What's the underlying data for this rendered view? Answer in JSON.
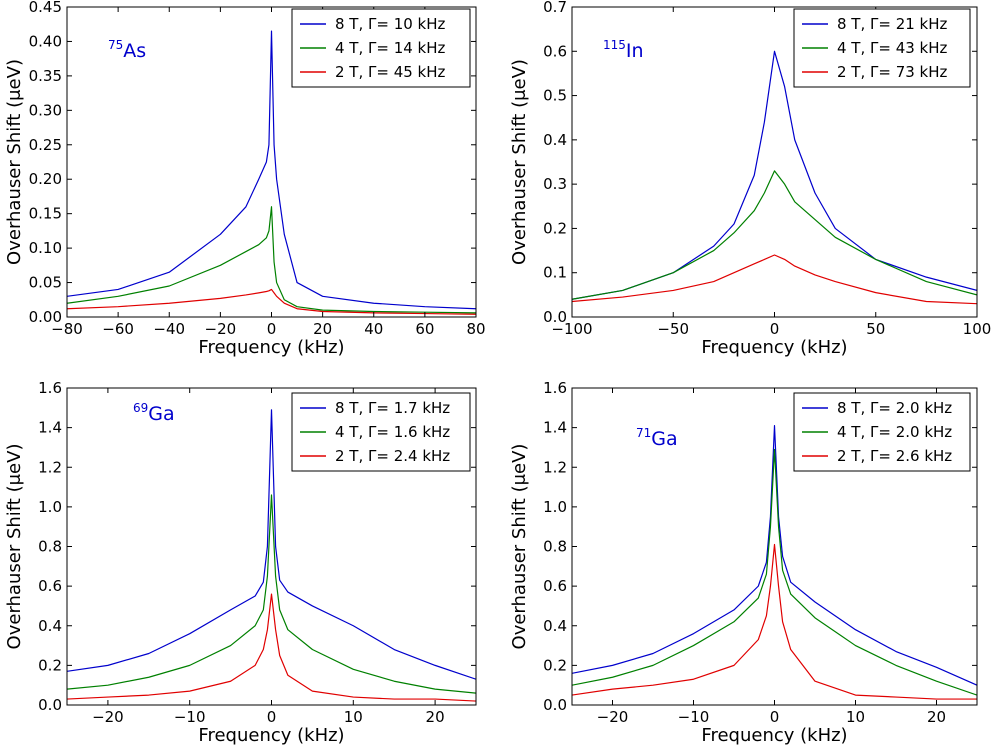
{
  "chart_data": [
    {
      "type": "line",
      "id": "as75",
      "nucleus": {
        "mass": "75",
        "symbol": "As"
      },
      "xlabel": "Frequency (kHz)",
      "ylabel": "Overhauser Shift (μeV)",
      "xlim": [
        -80,
        80
      ],
      "ylim": [
        0,
        0.45
      ],
      "xticks": [
        -80,
        -60,
        -40,
        -20,
        0,
        20,
        40,
        60,
        80
      ],
      "xtick_labels": [
        "−80",
        "−60",
        "−40",
        "−20",
        "0",
        "20",
        "40",
        "60",
        "80"
      ],
      "yticks": [
        0.0,
        0.05,
        0.1,
        0.15,
        0.2,
        0.25,
        0.3,
        0.35,
        0.4,
        0.45
      ],
      "ytick_labels": [
        "0.00",
        "0.05",
        "0.10",
        "0.15",
        "0.20",
        "0.25",
        "0.30",
        "0.35",
        "0.40",
        "0.45"
      ],
      "legend_position": "top-right",
      "series": [
        {
          "name": "8 T, Γ= 10 kHz",
          "color": "#0000cc",
          "x": [
            -80,
            -60,
            -40,
            -20,
            -10,
            -5,
            -2,
            -1,
            0,
            1,
            2,
            5,
            10,
            20,
            40,
            60,
            80
          ],
          "y": [
            0.03,
            0.04,
            0.065,
            0.12,
            0.16,
            0.2,
            0.225,
            0.25,
            0.415,
            0.25,
            0.2,
            0.12,
            0.05,
            0.03,
            0.02,
            0.015,
            0.012
          ]
        },
        {
          "name": "4 T, Γ= 14 kHz",
          "color": "#008000",
          "x": [
            -80,
            -60,
            -40,
            -20,
            -10,
            -5,
            -2,
            -1,
            0,
            1,
            2,
            5,
            10,
            20,
            40,
            60,
            80
          ],
          "y": [
            0.02,
            0.03,
            0.045,
            0.075,
            0.095,
            0.105,
            0.115,
            0.125,
            0.16,
            0.08,
            0.05,
            0.025,
            0.015,
            0.01,
            0.008,
            0.007,
            0.006
          ]
        },
        {
          "name": "2 T, Γ= 45 kHz",
          "color": "#e00000",
          "x": [
            -80,
            -60,
            -40,
            -20,
            -10,
            -5,
            -2,
            -1,
            0,
            1,
            2,
            5,
            10,
            20,
            40,
            60,
            80
          ],
          "y": [
            0.012,
            0.015,
            0.02,
            0.027,
            0.032,
            0.035,
            0.037,
            0.038,
            0.04,
            0.035,
            0.03,
            0.02,
            0.012,
            0.008,
            0.006,
            0.005,
            0.004
          ]
        }
      ]
    },
    {
      "type": "line",
      "id": "in115",
      "nucleus": {
        "mass": "115",
        "symbol": "In"
      },
      "xlabel": "Frequency (kHz)",
      "ylabel": "Overhauser Shift (μeV)",
      "xlim": [
        -100,
        100
      ],
      "ylim": [
        0,
        0.7
      ],
      "xticks": [
        -100,
        -50,
        0,
        50,
        100
      ],
      "xtick_labels": [
        "−100",
        "−50",
        "0",
        "50",
        "100"
      ],
      "yticks": [
        0.0,
        0.1,
        0.2,
        0.3,
        0.4,
        0.5,
        0.6,
        0.7
      ],
      "ytick_labels": [
        "0.0",
        "0.1",
        "0.2",
        "0.3",
        "0.4",
        "0.5",
        "0.6",
        "0.7"
      ],
      "legend_position": "top-right",
      "series": [
        {
          "name": "8 T, Γ= 21 kHz",
          "color": "#0000cc",
          "x": [
            -100,
            -75,
            -50,
            -30,
            -20,
            -10,
            -5,
            0,
            5,
            10,
            20,
            30,
            50,
            75,
            100
          ],
          "y": [
            0.04,
            0.06,
            0.1,
            0.16,
            0.21,
            0.32,
            0.44,
            0.6,
            0.52,
            0.4,
            0.28,
            0.2,
            0.13,
            0.09,
            0.06
          ]
        },
        {
          "name": "4 T, Γ= 43 kHz",
          "color": "#008000",
          "x": [
            -100,
            -75,
            -50,
            -30,
            -20,
            -10,
            -5,
            0,
            5,
            10,
            20,
            30,
            50,
            75,
            100
          ],
          "y": [
            0.04,
            0.06,
            0.1,
            0.15,
            0.19,
            0.24,
            0.28,
            0.33,
            0.3,
            0.26,
            0.22,
            0.18,
            0.13,
            0.08,
            0.05
          ]
        },
        {
          "name": "2 T, Γ= 73 kHz",
          "color": "#e00000",
          "x": [
            -100,
            -75,
            -50,
            -30,
            -20,
            -10,
            -5,
            0,
            5,
            10,
            20,
            30,
            50,
            75,
            100
          ],
          "y": [
            0.035,
            0.045,
            0.06,
            0.08,
            0.1,
            0.12,
            0.13,
            0.14,
            0.13,
            0.115,
            0.095,
            0.08,
            0.055,
            0.035,
            0.03
          ]
        }
      ]
    },
    {
      "type": "line",
      "id": "ga69",
      "nucleus": {
        "mass": "69",
        "symbol": "Ga"
      },
      "xlabel": "Frequency (kHz)",
      "ylabel": "Overhauser Shift (μeV)",
      "xlim": [
        -25,
        25
      ],
      "ylim": [
        0,
        1.6
      ],
      "xticks": [
        -20,
        -10,
        0,
        10,
        20
      ],
      "xtick_labels": [
        "−20",
        "−10",
        "0",
        "10",
        "20"
      ],
      "yticks": [
        0.0,
        0.2,
        0.4,
        0.6,
        0.8,
        1.0,
        1.2,
        1.4,
        1.6
      ],
      "ytick_labels": [
        "0.0",
        "0.2",
        "0.4",
        "0.6",
        "0.8",
        "1.0",
        "1.2",
        "1.4",
        "1.6"
      ],
      "legend_position": "top-right",
      "series": [
        {
          "name": "8 T, Γ= 1.7 kHz",
          "color": "#0000cc",
          "x": [
            -25,
            -20,
            -15,
            -10,
            -5,
            -2,
            -1,
            -0.5,
            0,
            0.5,
            1,
            2,
            5,
            10,
            15,
            20,
            25
          ],
          "y": [
            0.17,
            0.2,
            0.26,
            0.36,
            0.48,
            0.55,
            0.62,
            0.8,
            1.49,
            0.8,
            0.63,
            0.57,
            0.5,
            0.4,
            0.28,
            0.2,
            0.13
          ]
        },
        {
          "name": "4 T, Γ= 1.6 kHz",
          "color": "#008000",
          "x": [
            -25,
            -20,
            -15,
            -10,
            -5,
            -2,
            -1,
            -0.5,
            0,
            0.5,
            1,
            2,
            5,
            10,
            15,
            20,
            25
          ],
          "y": [
            0.08,
            0.1,
            0.14,
            0.2,
            0.3,
            0.4,
            0.48,
            0.65,
            1.06,
            0.65,
            0.48,
            0.38,
            0.28,
            0.18,
            0.12,
            0.08,
            0.06
          ]
        },
        {
          "name": "2 T, Γ= 2.4 kHz",
          "color": "#e00000",
          "x": [
            -25,
            -20,
            -15,
            -10,
            -5,
            -2,
            -1,
            -0.5,
            0,
            0.5,
            1,
            2,
            5,
            10,
            15,
            20,
            25
          ],
          "y": [
            0.03,
            0.04,
            0.05,
            0.07,
            0.12,
            0.2,
            0.28,
            0.38,
            0.56,
            0.38,
            0.25,
            0.15,
            0.07,
            0.04,
            0.03,
            0.03,
            0.02
          ]
        }
      ]
    },
    {
      "type": "line",
      "id": "ga71",
      "nucleus": {
        "mass": "71",
        "symbol": "Ga"
      },
      "xlabel": "Frequency (kHz)",
      "ylabel": "Overhauser Shift (μeV)",
      "xlim": [
        -25,
        25
      ],
      "ylim": [
        0,
        1.6
      ],
      "xticks": [
        -20,
        -10,
        0,
        10,
        20
      ],
      "xtick_labels": [
        "−20",
        "−10",
        "0",
        "10",
        "20"
      ],
      "yticks": [
        0.0,
        0.2,
        0.4,
        0.6,
        0.8,
        1.0,
        1.2,
        1.4,
        1.6
      ],
      "ytick_labels": [
        "0.0",
        "0.2",
        "0.4",
        "0.6",
        "0.8",
        "1.0",
        "1.2",
        "1.4",
        "1.6"
      ],
      "legend_position": "top-right",
      "series": [
        {
          "name": "8 T, Γ= 2.0 kHz",
          "color": "#0000cc",
          "x": [
            -25,
            -20,
            -15,
            -10,
            -5,
            -2,
            -1,
            -0.5,
            0,
            0.5,
            1,
            2,
            5,
            10,
            15,
            20,
            25
          ],
          "y": [
            0.16,
            0.2,
            0.26,
            0.36,
            0.48,
            0.6,
            0.72,
            0.95,
            1.41,
            0.95,
            0.75,
            0.62,
            0.52,
            0.38,
            0.27,
            0.19,
            0.1
          ]
        },
        {
          "name": "4 T, Γ= 2.0 kHz",
          "color": "#008000",
          "x": [
            -25,
            -20,
            -15,
            -10,
            -5,
            -2,
            -1,
            -0.5,
            0,
            0.5,
            1,
            2,
            5,
            10,
            15,
            20,
            25
          ],
          "y": [
            0.1,
            0.14,
            0.2,
            0.3,
            0.42,
            0.54,
            0.66,
            0.9,
            1.29,
            0.9,
            0.68,
            0.56,
            0.44,
            0.3,
            0.2,
            0.12,
            0.05
          ]
        },
        {
          "name": "2 T, Γ= 2.6 kHz",
          "color": "#e00000",
          "x": [
            -25,
            -20,
            -15,
            -10,
            -5,
            -2,
            -1,
            -0.5,
            0,
            0.5,
            1,
            2,
            5,
            10,
            15,
            20,
            25
          ],
          "y": [
            0.05,
            0.08,
            0.1,
            0.13,
            0.2,
            0.33,
            0.45,
            0.6,
            0.81,
            0.6,
            0.42,
            0.28,
            0.12,
            0.05,
            0.04,
            0.03,
            0.03
          ]
        }
      ]
    }
  ]
}
